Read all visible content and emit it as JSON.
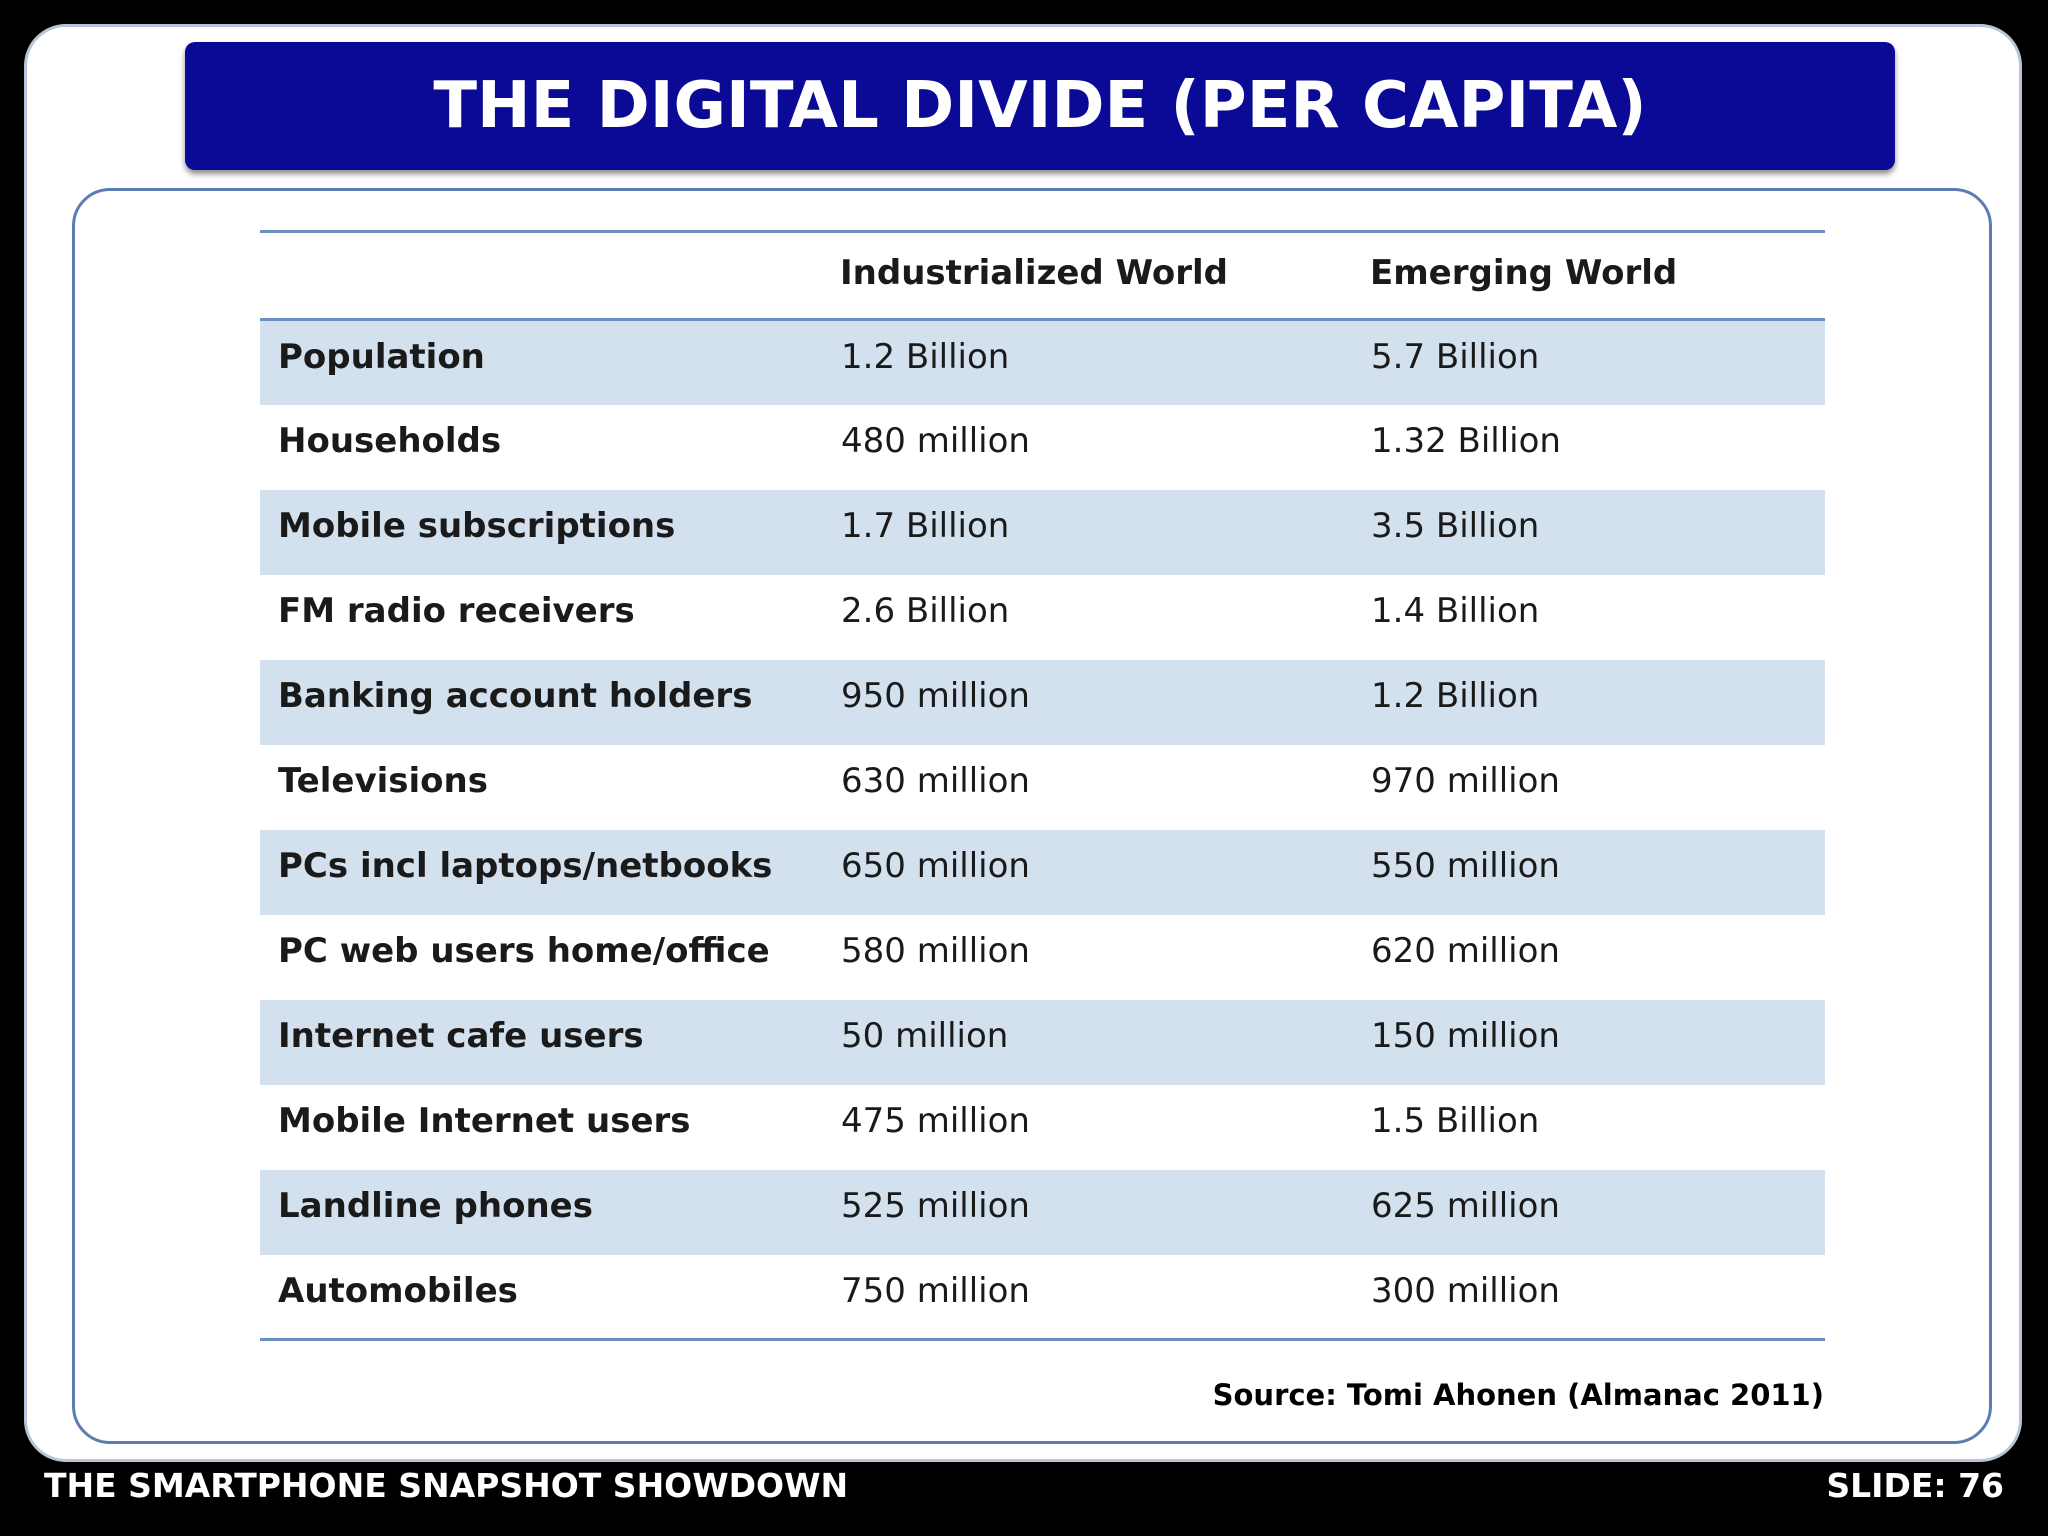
{
  "title": "THE DIGITAL DIVIDE (PER CAPITA)",
  "table": {
    "headers": [
      "",
      "Industrialized World",
      "Emerging World"
    ],
    "rows": [
      {
        "label": "Population",
        "industrialized": "1.2 Billion",
        "emerging": "5.7 Billion"
      },
      {
        "label": "Households",
        "industrialized": "480 million",
        "emerging": "1.32 Billion"
      },
      {
        "label": "Mobile subscriptions",
        "industrialized": "1.7 Billion",
        "emerging": "3.5 Billion"
      },
      {
        "label": "FM radio receivers",
        "industrialized": "2.6 Billion",
        "emerging": "1.4 Billion"
      },
      {
        "label": "Banking account holders",
        "industrialized": "950 million",
        "emerging": "1.2 Billion"
      },
      {
        "label": "Televisions",
        "industrialized": "630 million",
        "emerging": "970 million"
      },
      {
        "label": "PCs incl laptops/netbooks",
        "industrialized": "650 million",
        "emerging": "550 million"
      },
      {
        "label": "PC web users home/office",
        "industrialized": "580 million",
        "emerging": "620 million"
      },
      {
        "label": "Internet cafe users",
        "industrialized": "50 million",
        "emerging": "150 million"
      },
      {
        "label": "Mobile Internet users",
        "industrialized": "475 million",
        "emerging": "1.5 Billion"
      },
      {
        "label": "Landline phones",
        "industrialized": "525 million",
        "emerging": "625 million"
      },
      {
        "label": "Automobiles",
        "industrialized": "750 million",
        "emerging": "300 million"
      }
    ]
  },
  "source": "Source: Tomi Ahonen (Almanac 2011)",
  "footer": {
    "left": "THE SMARTPHONE SNAPSHOT SHOWDOWN",
    "right": "SLIDE: 76"
  },
  "colors": {
    "title_bar": "#0a0a96",
    "row_stripe": "#d3e0ee",
    "rule": "#6a8fc0",
    "background": "#000000"
  }
}
